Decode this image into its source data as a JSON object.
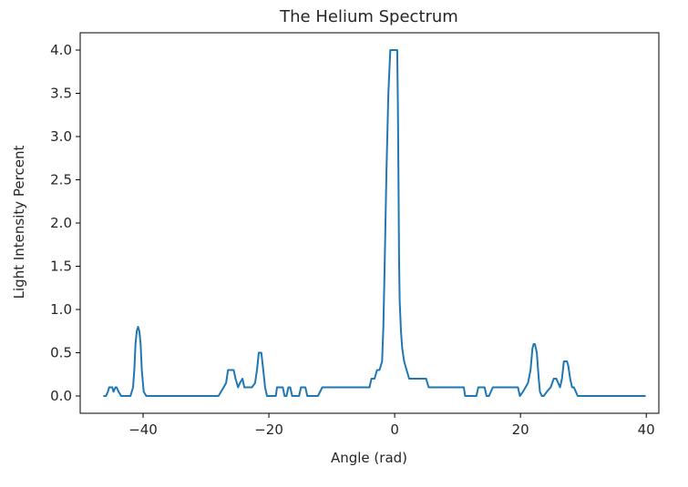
{
  "chart_data": {
    "type": "line",
    "title": "The Helium Spectrum",
    "xlabel": "Angle (rad)",
    "ylabel": "Light Intensity Percent",
    "xlim": [
      -50,
      42
    ],
    "ylim": [
      -0.2,
      4.2
    ],
    "xticks": [
      -40,
      -20,
      0,
      20,
      40
    ],
    "xtick_labels": [
      "−40",
      "−20",
      "0",
      "20",
      "40"
    ],
    "yticks": [
      0.0,
      0.5,
      1.0,
      1.5,
      2.0,
      2.5,
      3.0,
      3.5,
      4.0
    ],
    "ytick_labels": [
      "0.0",
      "0.5",
      "1.0",
      "1.5",
      "2.0",
      "2.5",
      "3.0",
      "3.5",
      "4.0"
    ],
    "grid": false,
    "series": [
      {
        "color": "#1f77b4",
        "x": [
          -46.2,
          -45.9,
          -45.6,
          -45.4,
          -45.2,
          -44.9,
          -44.7,
          -44.4,
          -44.2,
          -43.9,
          -43.5,
          -42.0,
          -41.6,
          -41.4,
          -41.2,
          -41.0,
          -40.8,
          -40.6,
          -40.4,
          -40.2,
          -39.9,
          -39.5,
          -28.0,
          -27.2,
          -26.8,
          -26.5,
          -26.0,
          -25.6,
          -25.3,
          -24.9,
          -24.6,
          -24.2,
          -23.9,
          -23.3,
          -22.7,
          -22.2,
          -21.9,
          -21.6,
          -21.2,
          -20.9,
          -20.6,
          -20.3,
          -19.8,
          -18.9,
          -18.7,
          -18.4,
          -17.8,
          -17.5,
          -17.2,
          -16.9,
          -16.6,
          -16.3,
          -15.9,
          -15.5,
          -15.2,
          -14.9,
          -14.6,
          -14.2,
          -13.9,
          -13.5,
          -12.2,
          -11.5,
          -11.2,
          -10.8,
          -4.0,
          -3.7,
          -3.2,
          -2.8,
          -2.4,
          -2.0,
          -1.8,
          -1.6,
          -1.3,
          -1.0,
          -0.7,
          -0.5,
          -0.3,
          0.4,
          0.5,
          0.6,
          0.7,
          0.8,
          1.0,
          1.2,
          1.5,
          1.9,
          2.3,
          2.6,
          3.0,
          3.6,
          4.2,
          5.0,
          5.4,
          5.8,
          11.0,
          11.2,
          13.0,
          13.3,
          13.6,
          14.3,
          14.6,
          15.0,
          15.6,
          16.0,
          19.6,
          19.9,
          20.4,
          20.8,
          21.2,
          21.6,
          21.9,
          22.1,
          22.3,
          22.6,
          22.9,
          23.1,
          23.4,
          23.7,
          24.2,
          24.8,
          25.3,
          25.7,
          26.0,
          26.3,
          26.6,
          26.9,
          27.2,
          27.4,
          27.6,
          27.9,
          28.2,
          28.5,
          28.8,
          29.1,
          29.4,
          29.8,
          39.8
        ],
        "y": [
          0.0,
          0.0,
          0.05,
          0.1,
          0.1,
          0.1,
          0.05,
          0.1,
          0.1,
          0.05,
          0.0,
          0.0,
          0.1,
          0.3,
          0.6,
          0.75,
          0.8,
          0.75,
          0.6,
          0.3,
          0.05,
          0.0,
          0.0,
          0.1,
          0.15,
          0.3,
          0.3,
          0.3,
          0.2,
          0.1,
          0.15,
          0.2,
          0.1,
          0.1,
          0.1,
          0.15,
          0.3,
          0.5,
          0.5,
          0.3,
          0.1,
          0.0,
          0.0,
          0.0,
          0.1,
          0.1,
          0.1,
          0.0,
          0.0,
          0.1,
          0.1,
          0.0,
          0.0,
          0.0,
          0.0,
          0.1,
          0.1,
          0.1,
          0.0,
          0.0,
          0.0,
          0.1,
          0.1,
          0.1,
          0.1,
          0.2,
          0.2,
          0.3,
          0.3,
          0.4,
          0.8,
          1.5,
          2.6,
          3.5,
          4.0,
          4.0,
          4.0,
          4.0,
          3.4,
          2.5,
          1.6,
          1.1,
          0.75,
          0.55,
          0.4,
          0.3,
          0.2,
          0.2,
          0.2,
          0.2,
          0.2,
          0.2,
          0.1,
          0.1,
          0.1,
          0.0,
          0.0,
          0.1,
          0.1,
          0.1,
          0.0,
          0.0,
          0.1,
          0.1,
          0.1,
          0.0,
          0.05,
          0.1,
          0.15,
          0.3,
          0.55,
          0.6,
          0.6,
          0.5,
          0.2,
          0.05,
          0.0,
          0.0,
          0.05,
          0.1,
          0.2,
          0.2,
          0.15,
          0.1,
          0.2,
          0.4,
          0.4,
          0.4,
          0.35,
          0.2,
          0.1,
          0.1,
          0.05,
          0.0,
          0.0,
          0.0,
          0.0
        ]
      }
    ]
  }
}
